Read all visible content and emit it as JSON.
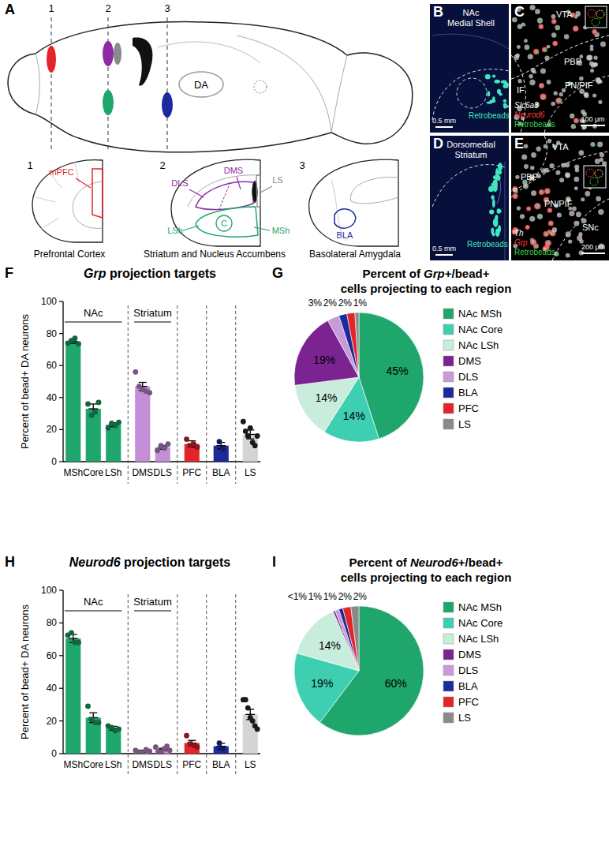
{
  "panel_labels": [
    "A",
    "B",
    "C",
    "D",
    "E",
    "F",
    "G",
    "H",
    "I"
  ],
  "diagram": {
    "section_numbers": [
      "1",
      "2",
      "3"
    ],
    "sagittal_label": "DA",
    "regions": [
      "mPFC",
      "DLS",
      "DMS",
      "LS",
      "LSh",
      "C",
      "MSh",
      "BLA"
    ],
    "sections": [
      "Prefrontal Cortex",
      "Striatum and Nucleus Accumbens",
      "Basolateral Amygdala"
    ]
  },
  "images": [
    {
      "title": [
        "NAc",
        "Medial Shell"
      ],
      "labels": [
        "Retrobeads"
      ],
      "scale_bar": "0.5 mm"
    },
    {
      "labels": [
        "VTA",
        "IF",
        "PBP",
        "PN/PIF"
      ],
      "stains": [
        "Slc6a3",
        "Neurod6",
        "Retrobeads"
      ],
      "scale_bar": "100 μm"
    },
    {
      "title": [
        "Dorsomedial",
        "Striatum"
      ],
      "labels": [
        "Retrobeads"
      ],
      "scale_bar": "0.5 mm"
    },
    {
      "labels": [
        "VTA",
        "PBP",
        "PN/PIF",
        "SNc"
      ],
      "stains": [
        "Th",
        "Grp",
        "Retrobeads"
      ],
      "scale_bar": "200 μm"
    }
  ],
  "chart_data": [
    {
      "type": "bar",
      "title": "Grp projection targets",
      "y_label": "Percent of bead+ DA neurons",
      "categories": [
        "MSh",
        "Core",
        "LSh",
        "DMS",
        "DLS",
        "PFC",
        "BLA",
        "LS"
      ],
      "values": [
        75,
        33,
        23,
        47,
        9,
        11,
        10,
        17
      ],
      "errors": [
        1.2,
        3,
        1.2,
        2.5,
        1.2,
        2,
        2,
        2.8
      ],
      "points": [
        [
          74,
          75.5,
          77,
          73.5
        ],
        [
          36,
          29,
          31,
          37
        ],
        [
          21,
          24,
          22.5,
          24.5
        ],
        [
          56,
          47,
          45,
          44,
          43
        ],
        [
          7,
          10,
          8.5,
          11
        ],
        [
          14,
          10,
          11,
          9
        ],
        [
          12.5,
          8
        ],
        [
          25,
          19,
          16,
          21,
          12,
          10,
          16
        ]
      ],
      "colors": [
        "#1fa66c",
        "#1fa66c",
        "#1fa66c",
        "#c48fd6",
        "#c48fd6",
        "#e3242b",
        "#1c2b9c",
        "#d4d4d4"
      ],
      "groups": [
        {
          "label": "NAc",
          "count": 3
        },
        {
          "label": "Striatum",
          "count": 2
        },
        {
          "count": 1
        },
        {
          "count": 1
        },
        {
          "count": 1
        }
      ],
      "ylim": [
        0,
        100
      ],
      "yticks": [
        0,
        20,
        40,
        60,
        80,
        100
      ]
    },
    {
      "type": "pie",
      "title": [
        "Percent of Grp+/bead+",
        "cells projecting to each region"
      ],
      "categories": [
        "NAc MSh",
        "NAc Core",
        "NAc LSh",
        "DMS",
        "DLS",
        "BLA",
        "PFC",
        "LS"
      ],
      "values": [
        45,
        14,
        14,
        19,
        3,
        2,
        2,
        1
      ],
      "value_labels": [
        "45%",
        "14%",
        "14%",
        "19%",
        "3%",
        "2%",
        "2%",
        "1%"
      ],
      "colors": [
        "#1fa66c",
        "#3ecfb2",
        "#c8eddc",
        "#7b2391",
        "#c79ad8",
        "#1c2b9c",
        "#e3242b",
        "#8a8a8a"
      ],
      "data_labels": true,
      "legend": "right"
    },
    {
      "type": "bar",
      "title": "Neurod6 projection targets",
      "y_label": "Percent of bead+ DA neurons",
      "categories": [
        "MSh",
        "Core",
        "LSh",
        "DMS",
        "DLS",
        "PFC",
        "BLA",
        "LS"
      ],
      "values": [
        70.5,
        22,
        15.5,
        1.5,
        2.5,
        6.5,
        4.5,
        24
      ],
      "errors": [
        2.5,
        3,
        1.2,
        0.6,
        0.8,
        1.6,
        1.8,
        3.2
      ],
      "points": [
        [
          72.5,
          74,
          68,
          68
        ],
        [
          29,
          21,
          19,
          19
        ],
        [
          17,
          16,
          14,
          15
        ],
        [
          2,
          1,
          0.5,
          2.5,
          1.5
        ],
        [
          4,
          1,
          0.5,
          3,
          4.5,
          2
        ],
        [
          11,
          6,
          5,
          4
        ],
        [
          6.5,
          3
        ],
        [
          33,
          33,
          28,
          22,
          20,
          17,
          15
        ]
      ],
      "colors": [
        "#1fa66c",
        "#1fa66c",
        "#1fa66c",
        "#c48fd6",
        "#c48fd6",
        "#e3242b",
        "#1c2b9c",
        "#d4d4d4"
      ],
      "groups": [
        {
          "label": "NAc",
          "count": 3
        },
        {
          "label": "Striatum",
          "count": 2
        },
        {
          "count": 1
        },
        {
          "count": 1
        },
        {
          "count": 1
        }
      ],
      "ylim": [
        0,
        100
      ],
      "yticks": [
        0,
        20,
        40,
        60,
        80,
        100
      ]
    },
    {
      "type": "pie",
      "title": [
        "Percent of Neurod6+/bead+",
        "cells projecting to each region"
      ],
      "categories": [
        "NAc MSh",
        "NAc Core",
        "NAc LSh",
        "DMS",
        "DLS",
        "BLA",
        "PFC",
        "LS"
      ],
      "values": [
        60,
        19,
        14,
        0.5,
        1,
        1,
        2,
        2
      ],
      "value_labels": [
        "60%",
        "19%",
        "14%",
        "<1%",
        "1%",
        "1%",
        "2%",
        "2%"
      ],
      "colors": [
        "#1fa66c",
        "#3ecfb2",
        "#c8eddc",
        "#7b2391",
        "#c79ad8",
        "#1c2b9c",
        "#e3242b",
        "#8a8a8a"
      ],
      "data_labels": true,
      "legend": "right"
    }
  ]
}
